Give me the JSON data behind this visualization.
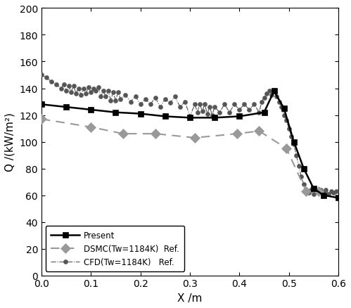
{
  "title": "",
  "xlabel": "X /m",
  "ylabel": "Q /(kW/m²)",
  "xlim": [
    0,
    0.6
  ],
  "ylim": [
    0,
    200
  ],
  "xticks": [
    0.0,
    0.1,
    0.2,
    0.3,
    0.4,
    0.5,
    0.6
  ],
  "yticks": [
    0,
    20,
    40,
    60,
    80,
    100,
    120,
    140,
    160,
    180,
    200
  ],
  "present_x": [
    0.0,
    0.05,
    0.1,
    0.15,
    0.2,
    0.25,
    0.3,
    0.35,
    0.4,
    0.45,
    0.47,
    0.49,
    0.51,
    0.53,
    0.55,
    0.57,
    0.6
  ],
  "present_y": [
    128,
    126,
    124,
    122,
    121,
    119,
    118,
    118,
    119,
    122,
    138,
    125,
    100,
    80,
    65,
    60,
    58
  ],
  "dsmc_x": [
    0.0,
    0.1,
    0.165,
    0.23,
    0.31,
    0.395,
    0.44,
    0.495,
    0.535,
    0.56
  ],
  "dsmc_y": [
    117,
    111,
    106,
    106,
    103,
    106,
    108,
    95,
    63,
    63
  ],
  "cfd_x": [
    0.0,
    0.01,
    0.02,
    0.03,
    0.04,
    0.045,
    0.05,
    0.055,
    0.06,
    0.065,
    0.07,
    0.075,
    0.08,
    0.085,
    0.09,
    0.095,
    0.1,
    0.105,
    0.11,
    0.115,
    0.12,
    0.125,
    0.13,
    0.135,
    0.14,
    0.145,
    0.15,
    0.155,
    0.16,
    0.17,
    0.18,
    0.19,
    0.2,
    0.21,
    0.22,
    0.23,
    0.24,
    0.25,
    0.26,
    0.27,
    0.28,
    0.29,
    0.3,
    0.31,
    0.315,
    0.32,
    0.325,
    0.33,
    0.335,
    0.34,
    0.345,
    0.35,
    0.36,
    0.37,
    0.38,
    0.39,
    0.4,
    0.41,
    0.42,
    0.43,
    0.44,
    0.445,
    0.45,
    0.455,
    0.46,
    0.465,
    0.47,
    0.475,
    0.48,
    0.485,
    0.49,
    0.495,
    0.5,
    0.505,
    0.51,
    0.515,
    0.52,
    0.525,
    0.53,
    0.535,
    0.54,
    0.545,
    0.55,
    0.555,
    0.56,
    0.565,
    0.57,
    0.575,
    0.58,
    0.585,
    0.59,
    0.595
  ],
  "cfd_y": [
    150,
    148,
    145,
    143,
    140,
    143,
    138,
    142,
    137,
    142,
    136,
    140,
    135,
    140,
    136,
    141,
    137,
    140,
    138,
    141,
    134,
    138,
    134,
    138,
    131,
    137,
    131,
    137,
    132,
    135,
    130,
    134,
    128,
    132,
    128,
    133,
    126,
    132,
    129,
    134,
    126,
    130,
    119,
    128,
    122,
    128,
    123,
    128,
    121,
    126,
    120,
    126,
    122,
    128,
    122,
    128,
    124,
    128,
    124,
    128,
    122,
    130,
    133,
    136,
    138,
    135,
    138,
    134,
    130,
    126,
    120,
    116,
    110,
    104,
    98,
    90,
    82,
    74,
    68,
    63,
    62,
    64,
    61,
    63,
    62,
    64,
    62,
    64,
    61,
    63,
    62,
    63
  ],
  "present_color": "#000000",
  "dsmc_color": "#999999",
  "cfd_color": "#555555",
  "legend_labels": [
    "Present",
    "DSMC(Tw=1184K)  Ref.",
    "CFD(Tw=1184K)   Ref."
  ]
}
